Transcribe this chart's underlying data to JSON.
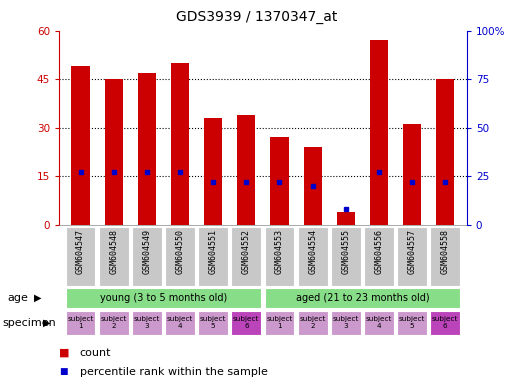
{
  "title": "GDS3939 / 1370347_at",
  "samples": [
    "GSM604547",
    "GSM604548",
    "GSM604549",
    "GSM604550",
    "GSM604551",
    "GSM604552",
    "GSM604553",
    "GSM604554",
    "GSM604555",
    "GSM604556",
    "GSM604557",
    "GSM604558"
  ],
  "counts": [
    49,
    45,
    47,
    50,
    33,
    34,
    27,
    24,
    4,
    57,
    31,
    45
  ],
  "percentile_ranks": [
    27,
    27,
    27,
    27,
    22,
    22,
    22,
    20,
    8,
    27,
    22,
    22
  ],
  "ylim_left": [
    0,
    60
  ],
  "ylim_right": [
    0,
    100
  ],
  "yticks_left": [
    0,
    15,
    30,
    45,
    60
  ],
  "yticks_right": [
    0,
    25,
    50,
    75,
    100
  ],
  "bar_color": "#cc0000",
  "marker_color": "#0000cc",
  "bar_width": 0.55,
  "tick_bg_color": "#c8c8c8",
  "left_axis_color": "#cc0000",
  "right_axis_color": "#0000cc",
  "specimen_color_light": "#cc99cc",
  "specimen_color_dark": "#bb44bb",
  "age_color": "#88dd88",
  "legend_count_label": "count",
  "legend_pct_label": "percentile rank within the sample",
  "age_young_label": "young (3 to 5 months old)",
  "age_aged_label": "aged (21 to 23 months old)",
  "specimen_labels": [
    "subject\n1",
    "subject\n2",
    "subject\n3",
    "subject\n4",
    "subject\n5",
    "subject\n6",
    "subject\n1",
    "subject\n2",
    "subject\n3",
    "subject\n4",
    "subject\n5",
    "subject\n6"
  ],
  "specimen_dark_indices": [
    5,
    11
  ]
}
